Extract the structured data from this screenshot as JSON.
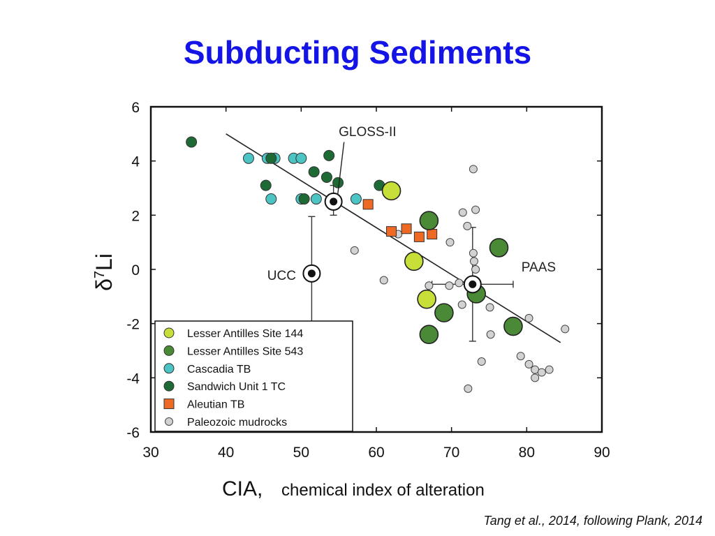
{
  "slide": {
    "title": "Subducting Sediments",
    "citation": "Tang et al., 2014, following Plank, 2014"
  },
  "colors": {
    "lesser_antilles_144": "#c8df3a",
    "lesser_antilles_543": "#4a8a36",
    "cascadia": "#4cc4c4",
    "sandwich": "#1e6a34",
    "aleutian": "#ee6a24",
    "paleozoic": "#d2d2d2"
  },
  "chart_data": {
    "type": "scatter",
    "xlabel": "CIA,",
    "xlabel_sub": "chemical index of alteration",
    "ylabel": "δ7Li",
    "xlim": [
      30,
      90
    ],
    "ylim": [
      -6,
      6
    ],
    "x_ticks": [
      30,
      40,
      50,
      60,
      70,
      80,
      90
    ],
    "y_ticks": [
      6,
      4,
      2,
      0,
      -2,
      -4,
      -6
    ],
    "legend_position": "bottom-left",
    "legend": [
      "Lesser Antilles Site 144",
      "Lesser Antilles Site 543",
      "Cascadia TB",
      "Sandwich Unit 1 TC",
      "Aleutian TB",
      "Paleozoic mudrocks"
    ],
    "trend_line": {
      "x": [
        40,
        84.5
      ],
      "y": [
        5.0,
        -2.7
      ]
    },
    "series": [
      {
        "name": "Paleozoic mudrocks",
        "marker": "small-circle",
        "points": [
          [
            72.9,
            3.7
          ],
          [
            71.5,
            2.1
          ],
          [
            73.2,
            2.2
          ],
          [
            72.1,
            1.6
          ],
          [
            69.8,
            1.0
          ],
          [
            62.9,
            1.3
          ],
          [
            57.1,
            0.7
          ],
          [
            72.9,
            0.6
          ],
          [
            73.0,
            0.3
          ],
          [
            73.2,
            0.0
          ],
          [
            61.0,
            -0.4
          ],
          [
            69.7,
            -0.6
          ],
          [
            67.0,
            -0.6
          ],
          [
            71.0,
            -0.5
          ],
          [
            71.4,
            -1.3
          ],
          [
            75.1,
            -1.4
          ],
          [
            80.3,
            -1.8
          ],
          [
            85.1,
            -2.2
          ],
          [
            75.2,
            -2.4
          ],
          [
            79.2,
            -3.2
          ],
          [
            80.3,
            -3.5
          ],
          [
            81.1,
            -3.7
          ],
          [
            82.0,
            -3.8
          ],
          [
            83.0,
            -3.7
          ],
          [
            81.1,
            -4.0
          ],
          [
            74.0,
            -3.4
          ],
          [
            72.2,
            -4.4
          ]
        ]
      },
      {
        "name": "Cascadia TB",
        "marker": "circle",
        "points": [
          [
            43.0,
            4.1
          ],
          [
            45.5,
            4.1
          ],
          [
            46.5,
            4.1
          ],
          [
            49.0,
            4.1
          ],
          [
            50.0,
            4.1
          ],
          [
            46.0,
            2.6
          ],
          [
            50.0,
            2.6
          ],
          [
            52.0,
            2.6
          ],
          [
            57.3,
            2.6
          ]
        ]
      },
      {
        "name": "Sandwich Unit 1 TC",
        "marker": "circle",
        "points": [
          [
            35.4,
            4.7
          ],
          [
            46.0,
            4.1
          ],
          [
            53.7,
            4.2
          ],
          [
            51.7,
            3.6
          ],
          [
            53.4,
            3.4
          ],
          [
            54.9,
            3.2
          ],
          [
            60.4,
            3.1
          ],
          [
            45.3,
            3.1
          ],
          [
            50.4,
            2.6
          ]
        ]
      },
      {
        "name": "Aleutian TB",
        "marker": "square",
        "points": [
          [
            58.9,
            2.4
          ],
          [
            62.0,
            1.4
          ],
          [
            64.0,
            1.5
          ],
          [
            65.7,
            1.2
          ],
          [
            67.4,
            1.3
          ]
        ]
      },
      {
        "name": "Lesser Antilles Site 144",
        "marker": "large-circle",
        "points": [
          [
            62.0,
            2.9
          ],
          [
            65.0,
            0.3
          ],
          [
            66.7,
            -1.1
          ]
        ]
      },
      {
        "name": "Lesser Antilles Site 543",
        "marker": "large-circle",
        "points": [
          [
            67.0,
            1.8
          ],
          [
            76.3,
            0.8
          ],
          [
            73.3,
            -0.9
          ],
          [
            69.0,
            -1.6
          ],
          [
            78.2,
            -2.1
          ],
          [
            67.0,
            -2.4
          ]
        ]
      }
    ],
    "reference_points": [
      {
        "name": "GLOSS-II",
        "x": 54.3,
        "y": 2.5,
        "xerr": 0,
        "yerr": [
          0.6,
          0.5
        ],
        "label_at": [
          55,
          5.1
        ]
      },
      {
        "name": "UCC",
        "x": 51.4,
        "y": -0.15,
        "xerr": 0,
        "yerr": [
          2.1,
          1.9
        ],
        "label_at": [
          47.4,
          -0.2
        ]
      },
      {
        "name": "PAAS",
        "x": 72.8,
        "y": -0.55,
        "xerr": [
          5.4,
          5.4
        ],
        "yerr": [
          2.1,
          2.1
        ],
        "label_at": [
          79.3,
          0.1
        ]
      }
    ]
  }
}
